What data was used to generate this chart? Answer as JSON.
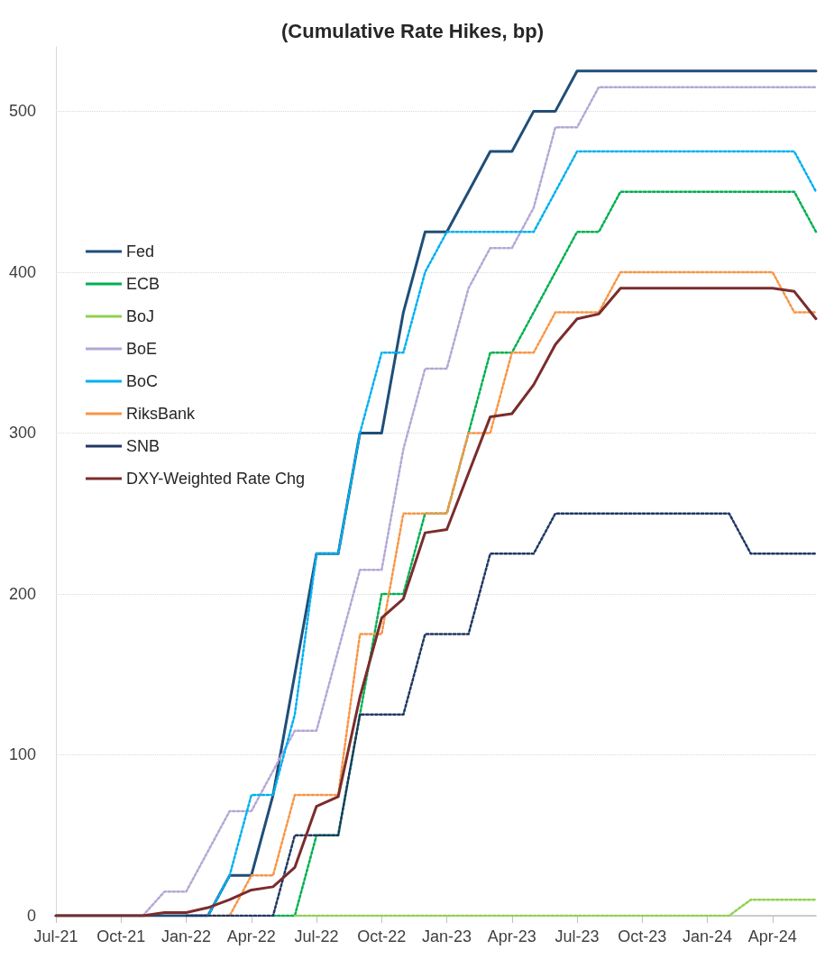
{
  "chart_data": {
    "type": "line",
    "title": "(Cumulative Rate Hikes, bp)",
    "categories": [
      "Jul-21",
      null,
      null,
      "Oct-21",
      null,
      null,
      "Jan-22",
      null,
      null,
      "Apr-22",
      null,
      null,
      "Jul-22",
      null,
      null,
      "Oct-22",
      null,
      null,
      "Jan-23",
      null,
      null,
      "Apr-23",
      null,
      null,
      "Jul-23",
      null,
      null,
      "Oct-23",
      null,
      null,
      "Jan-24",
      null,
      null,
      "Apr-24",
      null,
      null
    ],
    "series": [
      {
        "name": "Fed",
        "color": "#1f4e79",
        "line_style": "solid",
        "values": [
          0,
          0,
          0,
          0,
          0,
          0,
          0,
          0,
          25,
          25,
          75,
          150,
          225,
          225,
          300,
          300,
          375,
          425,
          425,
          450,
          475,
          475,
          500,
          500,
          525,
          525,
          525,
          525,
          525,
          525,
          525,
          525,
          525,
          525,
          525,
          525
        ]
      },
      {
        "name": "ECB",
        "color": "#00b050",
        "line_style": "dotted",
        "values": [
          null,
          null,
          null,
          null,
          null,
          null,
          null,
          null,
          null,
          null,
          0,
          0,
          50,
          50,
          125,
          200,
          200,
          250,
          250,
          300,
          350,
          350,
          375,
          400,
          425,
          425,
          450,
          450,
          450,
          450,
          450,
          450,
          450,
          450,
          450,
          425
        ]
      },
      {
        "name": "BoJ",
        "color": "#92d050",
        "line_style": "dotted",
        "values": [
          null,
          null,
          null,
          null,
          null,
          null,
          null,
          null,
          null,
          null,
          null,
          0,
          0,
          0,
          0,
          0,
          0,
          0,
          0,
          0,
          0,
          0,
          0,
          0,
          0,
          0,
          0,
          0,
          0,
          0,
          0,
          0,
          10,
          10,
          10,
          10
        ]
      },
      {
        "name": "BoE",
        "color": "#b4a7d6",
        "line_style": "dotted",
        "values": [
          null,
          null,
          null,
          null,
          0,
          15,
          15,
          40,
          65,
          65,
          90,
          115,
          115,
          165,
          215,
          215,
          290,
          340,
          340,
          390,
          415,
          415,
          440,
          490,
          490,
          515,
          515,
          515,
          515,
          515,
          515,
          515,
          515,
          515,
          515,
          515
        ]
      },
      {
        "name": "BoC",
        "color": "#00b0f0",
        "line_style": "dotted",
        "values": [
          null,
          null,
          null,
          null,
          null,
          null,
          null,
          0,
          25,
          75,
          75,
          125,
          225,
          225,
          300,
          350,
          350,
          400,
          425,
          425,
          425,
          425,
          425,
          450,
          475,
          475,
          475,
          475,
          475,
          475,
          475,
          475,
          475,
          475,
          475,
          450
        ]
      },
      {
        "name": "RiksBank",
        "color": "#f79646",
        "line_style": "dotted",
        "values": [
          null,
          null,
          null,
          null,
          null,
          null,
          null,
          0,
          0,
          25,
          25,
          75,
          75,
          75,
          175,
          175,
          250,
          250,
          250,
          300,
          300,
          350,
          350,
          375,
          375,
          375,
          400,
          400,
          400,
          400,
          400,
          400,
          400,
          400,
          375,
          375
        ]
      },
      {
        "name": "SNB",
        "color": "#1f3864",
        "line_style": "dotted",
        "values": [
          null,
          null,
          null,
          null,
          null,
          null,
          0,
          0,
          0,
          0,
          0,
          50,
          50,
          50,
          125,
          125,
          125,
          175,
          175,
          175,
          225,
          225,
          225,
          250,
          250,
          250,
          250,
          250,
          250,
          250,
          250,
          250,
          225,
          225,
          225,
          225
        ]
      },
      {
        "name": "DXY-Weighted Rate Chg",
        "color": "#7b2c2c",
        "line_style": "solid",
        "values": [
          0,
          0,
          0,
          0,
          0,
          2,
          2,
          5,
          10,
          16,
          18,
          30,
          68,
          74,
          136,
          185,
          197,
          238,
          240,
          275,
          310,
          312,
          330,
          355,
          371,
          374,
          390,
          390,
          390,
          390,
          390,
          390,
          390,
          390,
          388,
          371
        ]
      }
    ],
    "ylim": [
      0,
      540
    ],
    "yticks": [
      0,
      100,
      200,
      300,
      400,
      500
    ],
    "grid": "y",
    "legend": "left",
    "marker": "none"
  }
}
